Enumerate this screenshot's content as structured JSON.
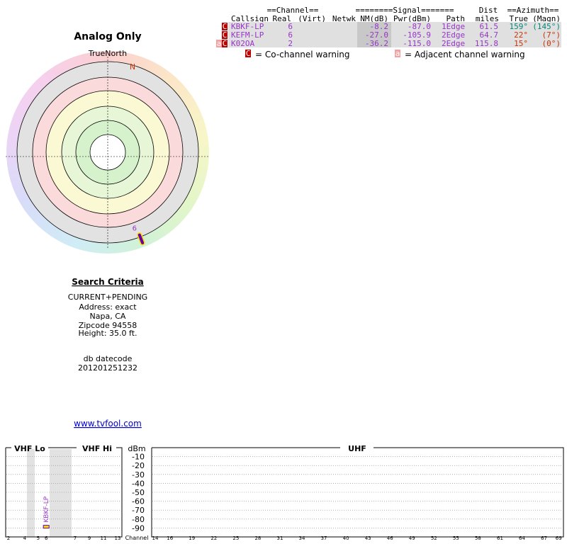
{
  "title": "Analog Only",
  "polar": {
    "north_label": "TrueNorth",
    "n_label": "N"
  },
  "table": {
    "group_headers": [
      "==Channel==",
      "========Signal=======",
      "Dist",
      "==Azimuth=="
    ],
    "headers": [
      "Callsign",
      "Real",
      "(Virt)",
      "Netwk",
      "NM(dB)",
      "Pwr(dBm)",
      "Path",
      "miles",
      "True",
      "(Magn)"
    ],
    "rows": [
      {
        "warnings": [
          "C"
        ],
        "callsign": "KBKF-LP",
        "real": "6",
        "nm": "-8.2",
        "pwr": "-87.0",
        "path": "1Edge",
        "dist": "61.5",
        "az_true": "159°",
        "az_magn": "(145°)",
        "az_color": "#008878"
      },
      {
        "warnings": [
          "C"
        ],
        "callsign": "KEFM-LP",
        "real": "6",
        "nm": "-27.0",
        "pwr": "-105.9",
        "path": "2Edge",
        "dist": "64.7",
        "az_true": "22°",
        "az_magn": "(7°)",
        "az_color": "#cc3300"
      },
      {
        "warnings": [
          "a",
          "C"
        ],
        "callsign": "K02OA",
        "real": "2",
        "nm": "-36.2",
        "pwr": "-115.0",
        "path": "2Edge",
        "dist": "115.8",
        "az_true": "15°",
        "az_magn": "(0°)",
        "az_color": "#cc3300"
      }
    ]
  },
  "legend": [
    {
      "code": "C",
      "text": "= Co-channel warning"
    },
    {
      "code": "a",
      "text": "= Adjacent channel warning"
    }
  ],
  "search": {
    "title": "Search Criteria",
    "lines": [
      "CURRENT+PENDING",
      "Address: exact",
      "Napa, CA",
      "Zipcode 94558",
      "Height: 35.0 ft."
    ],
    "db_label": "db datecode",
    "db_value": "201201251232"
  },
  "link": "www.tvfool.com",
  "spectrum": {
    "bands": [
      "VHF Lo",
      "VHF Hi",
      "UHF"
    ],
    "y_label": "dBm",
    "x_label": "Channel",
    "ylim": [
      -100,
      0
    ],
    "yticks": [
      -10,
      -20,
      -30,
      -40,
      -50,
      -60,
      -70,
      -80,
      -90
    ],
    "channels": [
      2,
      4,
      5,
      6,
      7,
      9,
      11,
      13,
      14,
      16,
      19,
      22,
      25,
      28,
      31,
      34,
      37,
      40,
      43,
      46,
      49,
      52,
      55,
      58,
      61,
      64,
      67,
      69
    ]
  }
}
